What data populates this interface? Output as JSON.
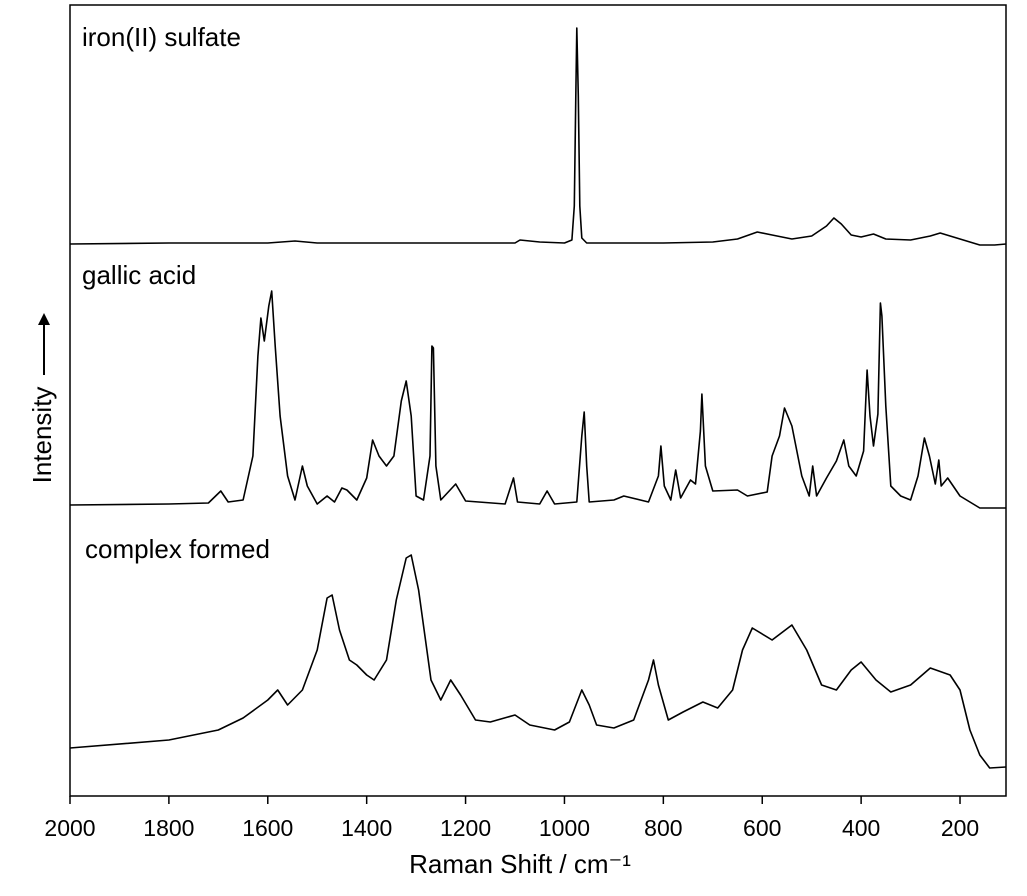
{
  "chart_data": {
    "type": "line",
    "xlabel": "Raman Shift / cm⁻¹",
    "ylabel": "Intensity",
    "xlim": [
      2000,
      107
    ],
    "ylim": [
      0,
      791
    ],
    "xticks": [
      2000,
      1800,
      1600,
      1400,
      1200,
      1000,
      800,
      600,
      400,
      200
    ],
    "series": [
      {
        "name": "iron(II) sulfate",
        "color": "#000000",
        "x": [
          2000,
          1800,
          1600,
          1545,
          1500,
          1300,
          1100,
          1090,
          1050,
          1000,
          985,
          980,
          977,
          975,
          972,
          969,
          965,
          955,
          900,
          800,
          700,
          650,
          610,
          580,
          540,
          500,
          470,
          455,
          440,
          420,
          400,
          375,
          350,
          300,
          260,
          240,
          200,
          160,
          130,
          107
        ],
        "values": [
          552,
          553,
          553,
          555,
          553,
          553,
          553,
          556,
          554,
          553,
          556,
          590,
          700,
          768,
          700,
          590,
          558,
          553,
          553,
          553,
          554,
          557,
          564,
          561,
          557,
          560,
          570,
          578,
          572,
          561,
          559,
          562,
          557,
          556,
          560,
          563,
          557,
          551,
          551,
          552
        ]
      },
      {
        "name": "gallic acid",
        "color": "#000000",
        "x": [
          2000,
          1800,
          1720,
          1695,
          1680,
          1650,
          1630,
          1620,
          1614,
          1607,
          1598,
          1592,
          1585,
          1575,
          1560,
          1545,
          1530,
          1520,
          1500,
          1480,
          1465,
          1450,
          1440,
          1420,
          1400,
          1388,
          1375,
          1360,
          1345,
          1330,
          1320,
          1310,
          1300,
          1285,
          1272,
          1268,
          1265,
          1260,
          1250,
          1220,
          1200,
          1120,
          1103,
          1095,
          1050,
          1035,
          1020,
          975,
          965,
          960,
          955,
          950,
          900,
          880,
          830,
          810,
          805,
          798,
          785,
          775,
          765,
          745,
          735,
          725,
          722,
          715,
          700,
          650,
          630,
          590,
          580,
          565,
          555,
          540,
          520,
          505,
          498,
          490,
          470,
          450,
          435,
          425,
          410,
          395,
          388,
          382,
          375,
          366,
          361,
          358,
          350,
          340,
          320,
          300,
          285,
          272,
          262,
          250,
          243,
          238,
          225,
          200,
          180,
          160,
          107
        ],
        "values": [
          291,
          292,
          293,
          305,
          294,
          296,
          340,
          440,
          478,
          455,
          490,
          505,
          450,
          380,
          320,
          296,
          330,
          310,
          292,
          300,
          294,
          308,
          306,
          296,
          318,
          356,
          340,
          330,
          340,
          395,
          415,
          380,
          300,
          296,
          340,
          450,
          448,
          330,
          296,
          312,
          295,
          292,
          318,
          294,
          292,
          305,
          292,
          294,
          360,
          384,
          330,
          294,
          296,
          300,
          294,
          320,
          350,
          310,
          296,
          326,
          298,
          316,
          312,
          365,
          402,
          330,
          305,
          306,
          300,
          304,
          340,
          360,
          388,
          370,
          320,
          300,
          330,
          300,
          318,
          335,
          356,
          330,
          320,
          345,
          426,
          380,
          350,
          382,
          493,
          480,
          390,
          310,
          300,
          296,
          320,
          358,
          340,
          312,
          336,
          310,
          318,
          300,
          294,
          288,
          288
        ]
      },
      {
        "name": "complex formed",
        "color": "#000000",
        "x": [
          2000,
          1800,
          1700,
          1650,
          1600,
          1580,
          1560,
          1530,
          1500,
          1480,
          1470,
          1455,
          1435,
          1420,
          1400,
          1385,
          1360,
          1340,
          1320,
          1310,
          1295,
          1270,
          1250,
          1230,
          1210,
          1180,
          1150,
          1100,
          1070,
          1020,
          990,
          965,
          950,
          935,
          900,
          860,
          830,
          820,
          810,
          790,
          760,
          720,
          690,
          660,
          640,
          620,
          580,
          540,
          510,
          480,
          450,
          420,
          400,
          370,
          340,
          300,
          260,
          220,
          200,
          180,
          160,
          140,
          107
        ],
        "values": [
          48,
          56,
          66,
          78,
          96,
          106,
          91,
          106,
          146,
          198,
          201,
          166,
          136,
          131,
          121,
          116,
          136,
          196,
          238,
          241,
          206,
          116,
          96,
          116,
          101,
          76,
          74,
          81,
          71,
          66,
          74,
          106,
          91,
          71,
          68,
          76,
          116,
          136,
          111,
          76,
          84,
          94,
          88,
          106,
          146,
          168,
          156,
          171,
          146,
          111,
          106,
          126,
          134,
          116,
          104,
          111,
          128,
          121,
          106,
          66,
          41,
          28,
          29
        ]
      }
    ]
  }
}
